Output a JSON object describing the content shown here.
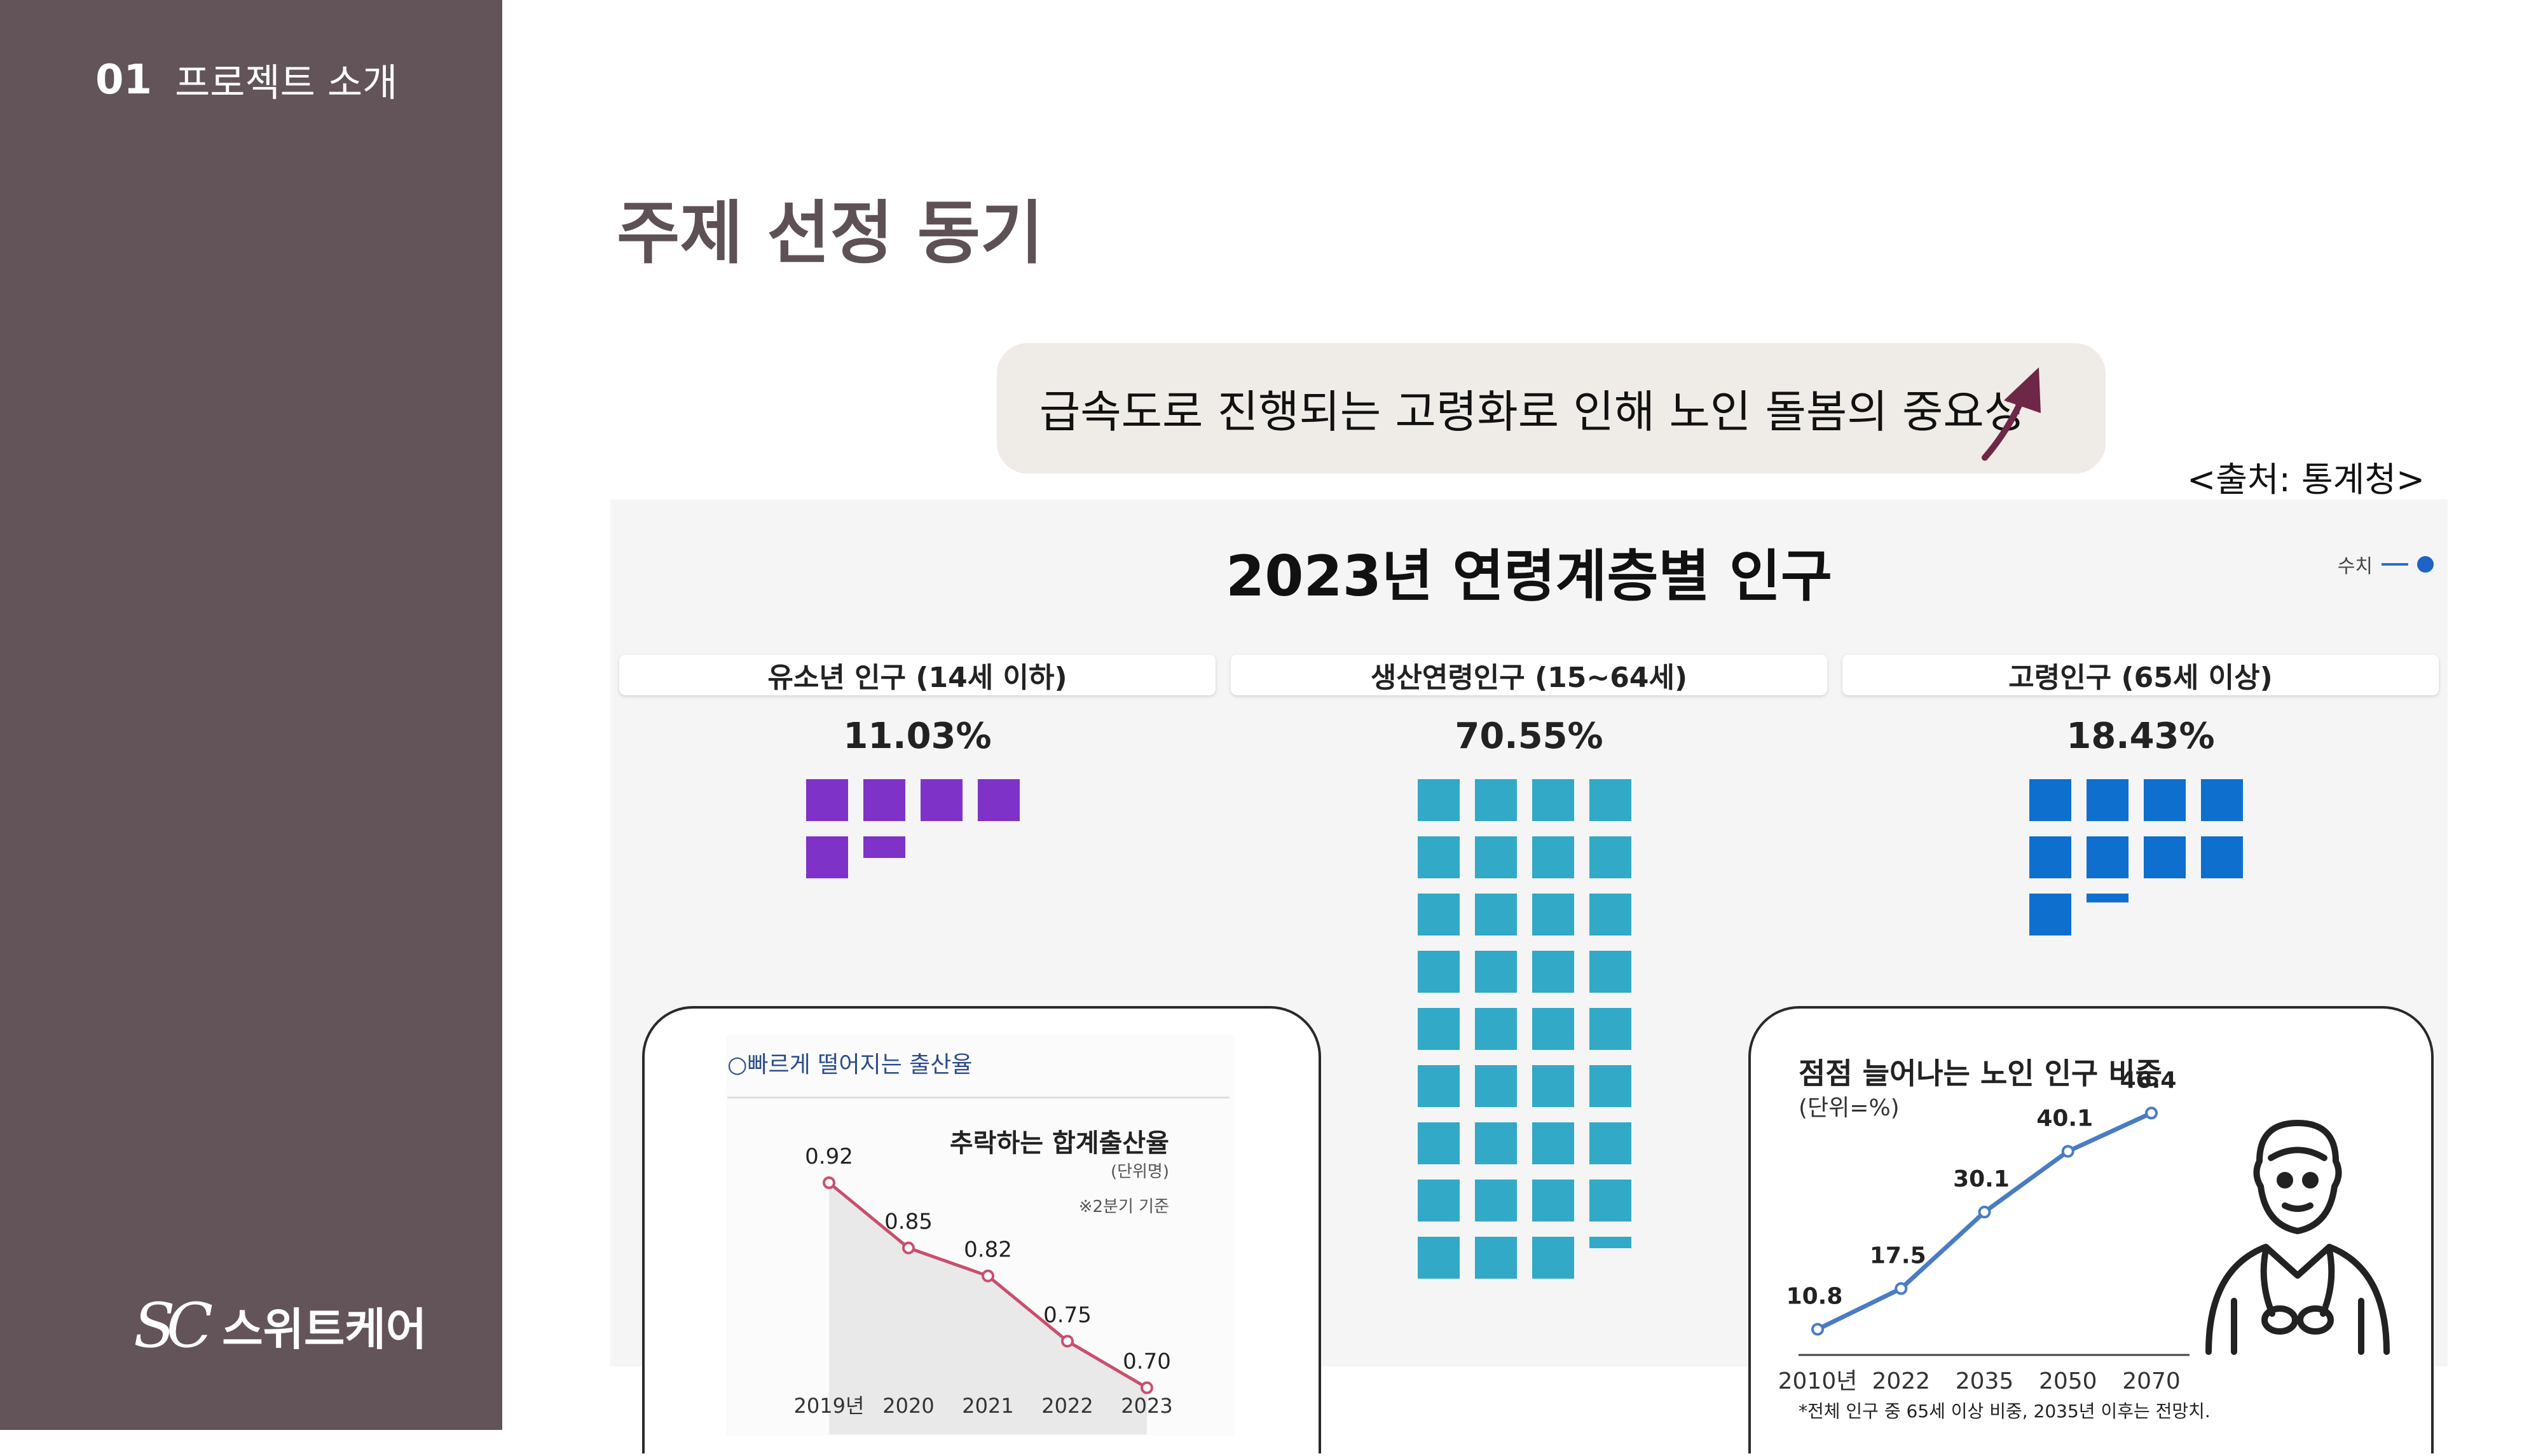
{
  "sidebar": {
    "section_number": "01",
    "section_title": "프로젝트 소개",
    "logo_mark": "SC",
    "logo_name": "스위트케어"
  },
  "page_title": "주제 선정 동기",
  "banner": {
    "text": "급속도로 진행되는 고령화로 인해 노인 돌봄의 중요성",
    "icon": "arrow-up-icon"
  },
  "source": "<출처: 통계청>",
  "colors": {
    "sidebar": "#635459",
    "youth": "#7f32c8",
    "working": "#31a9c7",
    "elderly": "#0f6fce",
    "banner_bg": "#efebe6",
    "line_birth": "#c94f6d",
    "line_elderly": "#4a7cc4"
  },
  "infographic": {
    "title": "2023년 연령계층별 인구",
    "legend": "수치",
    "groups": [
      {
        "label": "유소년 인구 (14세 이하)",
        "percent_text": "11.03%",
        "value": 11.03
      },
      {
        "label": "생산연령인구 (15~64세)",
        "percent_text": "70.55%",
        "value": 70.55
      },
      {
        "label": "고령인구 (65세 이상)",
        "percent_text": "18.43%",
        "value": 18.43
      }
    ]
  },
  "chart_data": [
    {
      "type": "line",
      "header": "○빠르게 떨어지는 출산율",
      "title": "추락하는 합계출산율",
      "unit": "(단위명)",
      "note": "※2분기 기준",
      "categories": [
        "2019년",
        "2020",
        "2021",
        "2022",
        "2023"
      ],
      "values": [
        0.92,
        0.85,
        0.82,
        0.75,
        0.7
      ],
      "value_labels": [
        "0.92",
        "0.85",
        "0.82",
        "0.75",
        "0.70"
      ],
      "ylim": [
        0.65,
        0.95
      ]
    },
    {
      "type": "line",
      "title": "점점 늘어나는 노인 인구 비중",
      "unit": "(단위=%)",
      "categories": [
        "2010년",
        "2022",
        "2035",
        "2050",
        "2070"
      ],
      "values": [
        10.8,
        17.5,
        30.1,
        40.1,
        46.4
      ],
      "value_labels": [
        "10.8",
        "17.5",
        "30.1",
        "40.1",
        "46.4"
      ],
      "footnote": "*전체 인구 중 65세 이상 비중, 2035년 이후는 전망치.",
      "ylim": [
        5,
        50
      ],
      "icon": "elderly-person-icon"
    }
  ]
}
